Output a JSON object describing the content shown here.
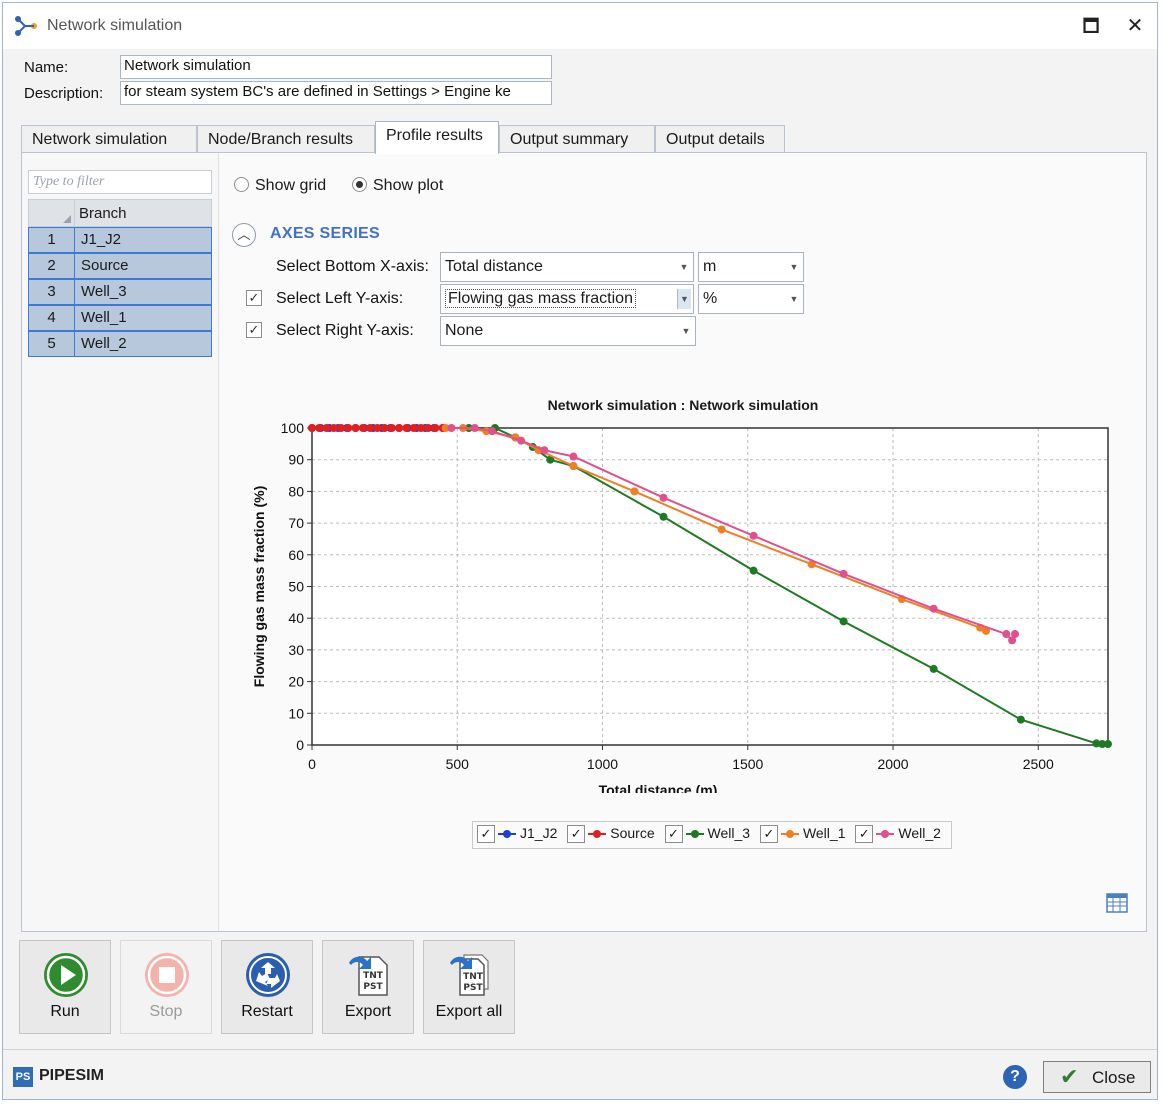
{
  "window": {
    "title": "Network simulation",
    "maximize_glyph": "🗖",
    "close_glyph": "✕"
  },
  "form": {
    "name_label": "Name:",
    "name_value": "Network simulation",
    "description_label": "Description:",
    "description_value": "for steam system BC's are defined in Settings > Engine ke"
  },
  "tabs": [
    {
      "label": "Network simulation",
      "active": false
    },
    {
      "label": "Node/Branch results",
      "active": false
    },
    {
      "label": "Profile results",
      "active": true
    },
    {
      "label": "Output summary",
      "active": false
    },
    {
      "label": "Output details",
      "active": false
    }
  ],
  "branch_panel": {
    "filter_placeholder": "Type to filter",
    "header": "Branch",
    "rows": [
      {
        "index": "1",
        "name": "J1_J2"
      },
      {
        "index": "2",
        "name": "Source"
      },
      {
        "index": "3",
        "name": "Well_3"
      },
      {
        "index": "4",
        "name": "Well_1"
      },
      {
        "index": "5",
        "name": "Well_2"
      }
    ]
  },
  "view_mode": {
    "grid_label": "Show grid",
    "plot_label": "Show plot",
    "selected": "plot"
  },
  "axes": {
    "section_title": "AXES SERIES",
    "collapse_glyph": "︿",
    "bottom_x_label": "Select Bottom X-axis:",
    "bottom_x_value": "Total distance",
    "bottom_x_unit": "m",
    "left_y_label": "Select Left Y-axis:",
    "left_y_checked": true,
    "left_y_value": "Flowing gas mass fraction",
    "left_y_unit": "%",
    "right_y_label": "Select Right Y-axis:",
    "right_y_checked": true,
    "right_y_value": "None",
    "check_glyph": "✓",
    "arrow_glyph": "▼"
  },
  "chart_data": {
    "type": "line",
    "title": "Network simulation : Network simulation",
    "xlabel": "Total distance (m)",
    "ylabel": "Flowing gas mass fraction (%)",
    "xlim": [
      0,
      2740
    ],
    "ylim": [
      0,
      100
    ],
    "xticks": [
      0,
      500,
      1000,
      1500,
      2000,
      2500
    ],
    "yticks": [
      0,
      10,
      20,
      30,
      40,
      50,
      60,
      70,
      80,
      90,
      100
    ],
    "grid": true,
    "legend": "bottom",
    "series": [
      {
        "name": "J1_J2",
        "color": "#1f3fd1",
        "x": [
          0,
          30,
          60,
          90,
          120,
          150,
          180,
          210,
          240,
          270,
          300,
          330,
          360,
          390,
          420,
          450
        ],
        "y": [
          100,
          100,
          100,
          100,
          100,
          100,
          100,
          100,
          100,
          100,
          100,
          100,
          100,
          100,
          100,
          100
        ]
      },
      {
        "name": "Source",
        "color": "#e02020",
        "x": [
          0,
          25,
          50,
          75,
          100,
          125,
          150,
          175,
          200,
          225,
          250,
          275,
          300,
          325,
          350,
          375,
          400,
          425,
          450
        ],
        "y": [
          100,
          100,
          100,
          100,
          100,
          100,
          100,
          100,
          100,
          100,
          100,
          100,
          100,
          100,
          100,
          100,
          100,
          100,
          100
        ]
      },
      {
        "name": "Well_3",
        "color": "#1e7a22",
        "x": [
          540,
          630,
          700,
          760,
          820,
          900,
          1210,
          1520,
          1830,
          2140,
          2440,
          2700,
          2720,
          2740
        ],
        "y": [
          100,
          100,
          97,
          94,
          90,
          88,
          72,
          55,
          39,
          24,
          8,
          0.5,
          0.3,
          0.3
        ]
      },
      {
        "name": "Well_1",
        "color": "#f07e23",
        "x": [
          460,
          520,
          600,
          700,
          780,
          900,
          1110,
          1410,
          1720,
          2030,
          2300,
          2320
        ],
        "y": [
          100,
          100,
          99,
          97,
          93,
          88,
          80,
          68,
          57,
          46,
          37,
          36
        ]
      },
      {
        "name": "Well_2",
        "color": "#e0508c",
        "x": [
          480,
          560,
          620,
          720,
          800,
          900,
          1210,
          1520,
          1830,
          2140,
          2390,
          2410,
          2420
        ],
        "y": [
          100,
          100,
          99,
          96,
          93,
          91,
          78,
          66,
          54,
          43,
          35,
          33,
          35
        ]
      }
    ]
  },
  "toolbar": {
    "run": "Run",
    "stop": "Stop",
    "restart": "Restart",
    "export": "Export",
    "export_all": "Export all",
    "file_badge_top": "TNT",
    "file_badge_bottom": "PST"
  },
  "footer": {
    "brand": "PIPESIM",
    "brand_logo": "PS",
    "help_glyph": "?",
    "close_label": "Close",
    "close_glyph": "✔"
  }
}
